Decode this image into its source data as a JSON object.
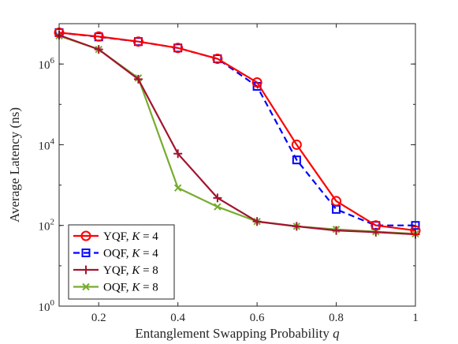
{
  "chart_data": {
    "type": "line",
    "title": "",
    "xlabel": "Entanglement Swapping Probability",
    "xlabel_var": "q",
    "ylabel": "Average Latency (ns)",
    "xlim": [
      0.1,
      1.0
    ],
    "ylim": [
      1,
      10000000
    ],
    "yscale": "log",
    "grid": false,
    "legend_position": "bottom-left",
    "x_ticks": [
      {
        "value": 0.2,
        "label": "0.2"
      },
      {
        "value": 0.4,
        "label": "0.4"
      },
      {
        "value": 0.6,
        "label": "0.6"
      },
      {
        "value": 0.8,
        "label": "0.8"
      },
      {
        "value": 1.0,
        "label": "1"
      }
    ],
    "y_ticks": [
      {
        "value": 1,
        "base": "10",
        "exp": "0"
      },
      {
        "value": 100,
        "base": "10",
        "exp": "2"
      },
      {
        "value": 10000,
        "base": "10",
        "exp": "4"
      },
      {
        "value": 1000000,
        "base": "10",
        "exp": "6"
      }
    ],
    "series": [
      {
        "name": "YQF, K = 4",
        "label_prefix": "YQF, ",
        "label_var": "K",
        "label_suffix": " = 4",
        "color": "#ff0000",
        "dash": "",
        "marker": "circle",
        "x": [
          0.1,
          0.2,
          0.3,
          0.4,
          0.5,
          0.6,
          0.7,
          0.8,
          0.9,
          1.0
        ],
        "y": [
          6000000,
          4800000,
          3600000,
          2500000,
          1350000,
          350000,
          10000,
          400,
          100,
          75
        ]
      },
      {
        "name": "OQF, K = 4",
        "label_prefix": "OQF, ",
        "label_var": "K",
        "label_suffix": " = 4",
        "color": "#0000ff",
        "dash": "8,5",
        "marker": "square",
        "x": [
          0.1,
          0.2,
          0.3,
          0.4,
          0.5,
          0.6,
          0.7,
          0.8,
          0.9,
          1.0
        ],
        "y": [
          6000000,
          4700000,
          3600000,
          2500000,
          1350000,
          280000,
          4200,
          250,
          100,
          100
        ]
      },
      {
        "name": "YQF, K = 8",
        "label_prefix": "YQF, ",
        "label_var": "K",
        "label_suffix": " = 8",
        "color": "#a2142f",
        "dash": "",
        "marker": "plus",
        "x": [
          0.1,
          0.2,
          0.3,
          0.4,
          0.5,
          0.6,
          0.7,
          0.8,
          0.9,
          1.0
        ],
        "y": [
          5200000,
          2300000,
          420000,
          6000,
          480,
          125,
          95,
          75,
          68,
          60
        ]
      },
      {
        "name": "OQF, K = 8",
        "label_prefix": "OQF, ",
        "label_var": "K",
        "label_suffix": " = 8",
        "color": "#77ac30",
        "dash": "",
        "marker": "x",
        "x": [
          0.1,
          0.2,
          0.3,
          0.4,
          0.5,
          0.6,
          0.7,
          0.8,
          0.9,
          1.0
        ],
        "y": [
          5000000,
          2300000,
          450000,
          850,
          290,
          125,
          95,
          80,
          70,
          62
        ]
      }
    ]
  }
}
